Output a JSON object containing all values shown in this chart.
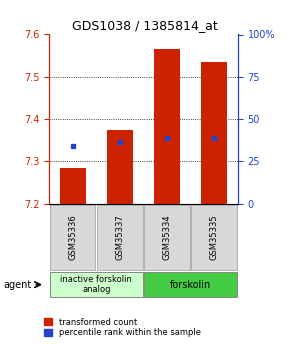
{
  "title": "GDS1038 / 1385814_at",
  "samples": [
    "GSM35336",
    "GSM35337",
    "GSM35334",
    "GSM35335"
  ],
  "bar_base": 7.2,
  "bar_tops": [
    7.285,
    7.375,
    7.565,
    7.535
  ],
  "blue_dots": [
    7.335,
    7.345,
    7.355,
    7.355
  ],
  "ylim": [
    7.2,
    7.6
  ],
  "yticks": [
    7.2,
    7.3,
    7.4,
    7.5,
    7.6
  ],
  "y2ticks": [
    0,
    25,
    50,
    75,
    100
  ],
  "y2labels": [
    "0",
    "25",
    "50",
    "75",
    "100%"
  ],
  "bar_color": "#cc2200",
  "blue_color": "#2244cc",
  "group1_label": "inactive forskolin\nanalog",
  "group2_label": "forskolin",
  "group1_color": "#ccffcc",
  "group2_color": "#44cc44",
  "agent_label": "agent",
  "legend_red": "transformed count",
  "legend_blue": "percentile rank within the sample",
  "bar_width": 0.55,
  "title_fontsize": 9,
  "tick_fontsize": 7,
  "sample_fontsize": 6,
  "legend_fontsize": 6,
  "agent_fontsize": 7
}
